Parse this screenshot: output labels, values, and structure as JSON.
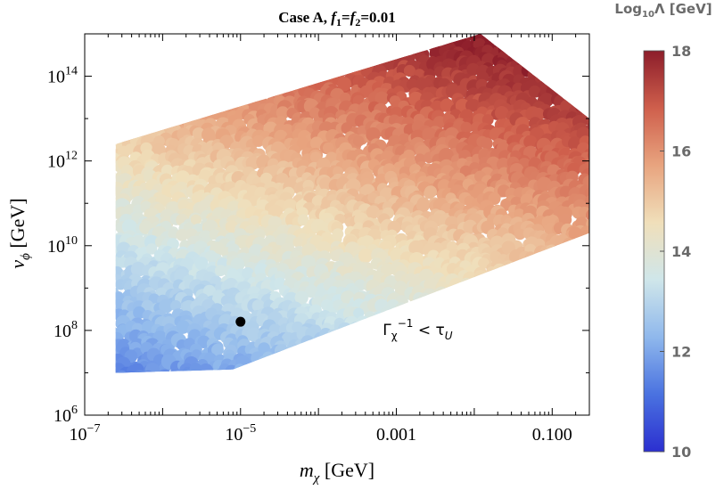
{
  "chart_data": {
    "type": "scatter",
    "title": "Case A, f1=f2=0.01",
    "title_parts": {
      "prefix": "Case A, ",
      "f1": "f",
      "f1_sub": "1",
      "eq1": "=",
      "f2": "f",
      "f2_sub": "2",
      "eq2": "=0.01"
    },
    "xlabel": "m_χ [GeV]",
    "xlabel_parts": {
      "sym": "m",
      "sub": "χ",
      "unit": " [GeV]"
    },
    "ylabel": "v_ϕ [GeV]",
    "ylabel_parts": {
      "sym": "v",
      "sub": "ϕ",
      "unit": " [GeV]"
    },
    "x_scale": "log",
    "y_scale": "log",
    "xlim": [
      1e-07,
      0.3
    ],
    "ylim": [
      1000000.0,
      1000000000000000.0
    ],
    "x_ticks": [
      {
        "value": 1e-07,
        "base": "10",
        "exp": "−7"
      },
      {
        "value": 1e-05,
        "base": "10",
        "exp": "−5"
      },
      {
        "value": 0.001,
        "label": "0.001"
      },
      {
        "value": 0.1,
        "label": "0.100"
      }
    ],
    "y_ticks": [
      {
        "value": 1000000.0,
        "base": "10",
        "exp": "6"
      },
      {
        "value": 100000000.0,
        "base": "10",
        "exp": "8"
      },
      {
        "value": 10000000000.0,
        "base": "10",
        "exp": "10"
      },
      {
        "value": 1000000000000.0,
        "base": "10",
        "exp": "12"
      },
      {
        "value": 100000000000000.0,
        "base": "10",
        "exp": "14"
      }
    ],
    "region_boundary": [
      [
        2.5e-07,
        10000000.0
      ],
      [
        8e-06,
        12000000.0
      ],
      [
        0.3,
        20000000000.0
      ],
      [
        0.3,
        10000000000000.0
      ],
      [
        0.012,
        1000000000000000.0
      ],
      [
        2.5e-07,
        2500000000000.0
      ]
    ],
    "marker": {
      "x": 1e-05,
      "y": 160000000.0
    },
    "annotation": {
      "x": 0.0025,
      "y": 100000000.0,
      "text": "Γ_χ^−1 < τ_U",
      "parts": {
        "g": "Γ",
        "sub": "χ",
        "sup": "−1",
        "lt": " < ",
        "tau": "τ",
        "tsub": "U"
      }
    },
    "colorbar": {
      "label": "Log10Λ [GeV]",
      "label_parts": {
        "pre": "Log",
        "sub": "10",
        "post": "Λ [GeV]"
      },
      "range": [
        10,
        18
      ],
      "ticks": [
        10,
        12,
        14,
        16,
        18
      ],
      "colors": [
        "#2b2fd0",
        "#4a72e0",
        "#8fb8ec",
        "#cfe6ea",
        "#f0dfba",
        "#e8a47f",
        "#cf5f4c",
        "#8c1d2a"
      ]
    },
    "grid": false,
    "legend": "none"
  }
}
